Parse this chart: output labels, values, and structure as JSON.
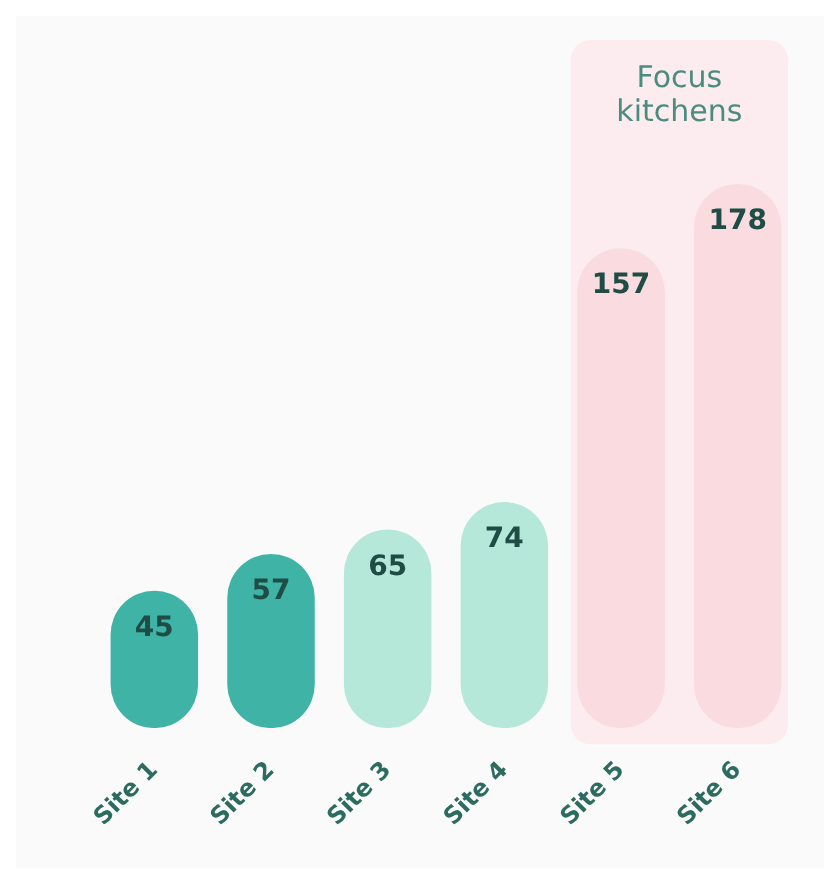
{
  "chart_data": {
    "type": "bar",
    "categories": [
      "Site 1",
      "Site 2",
      "Site 3",
      "Site 4",
      "Site 5",
      "Site 6"
    ],
    "values": [
      45,
      57,
      65,
      74,
      157,
      178
    ],
    "colors": [
      "#3fb3a6",
      "#3fb3a6",
      "#b5e8d9",
      "#b5e8d9",
      "#f9dbe0",
      "#f9dbe0"
    ],
    "data_labels": true,
    "bands": [
      {
        "axis": "x",
        "from": "Site 5",
        "to": "Site 6",
        "label": "Focus kitchens",
        "color": "#fcecef"
      }
    ],
    "grid": false,
    "legend": false,
    "tick_labels": "x"
  }
}
